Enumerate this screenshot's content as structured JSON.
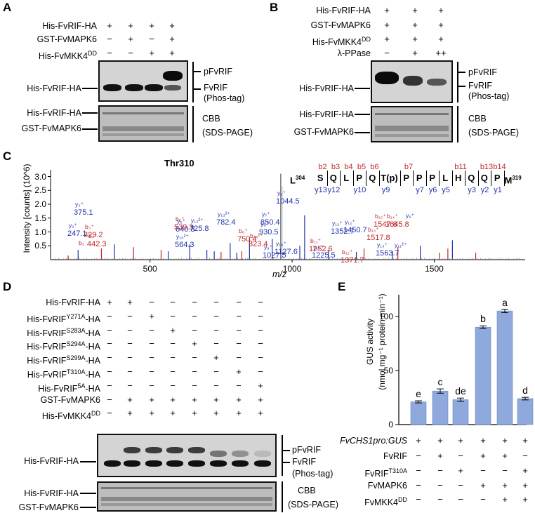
{
  "panels": [
    "A",
    "B",
    "C",
    "D",
    "E"
  ],
  "panelA": {
    "rows": [
      {
        "label": "His-FvRIF-HA",
        "signs": [
          "+",
          "+",
          "+",
          "+"
        ]
      },
      {
        "label": "GST-FvMAPK6",
        "signs": [
          "−",
          "+",
          "−",
          "+"
        ]
      },
      {
        "label": "His-FvMKK4",
        "sup": "DD",
        "signs": [
          "−",
          "−",
          "+",
          "+"
        ]
      }
    ],
    "blot_left": "His-FvRIF-HA",
    "blot_right": [
      "pFvRIF",
      "FvRIF",
      "(Phos-tag)"
    ],
    "cbb_left": [
      "His-FvRIF-HA",
      "GST-FvMAPK6"
    ],
    "cbb_right": [
      "CBB",
      "(SDS-PAGE)"
    ]
  },
  "panelB": {
    "rows": [
      {
        "label": "His-FvRIF-HA",
        "signs": [
          "+",
          "+",
          "+"
        ]
      },
      {
        "label": "GST-FvMAPK6",
        "signs": [
          "+",
          "+",
          "+"
        ]
      },
      {
        "label": "His-FvMKK4",
        "sup": "DD",
        "signs": [
          "+",
          "+",
          "+"
        ]
      },
      {
        "label": "λ-PPase",
        "signs": [
          "−",
          "+",
          "++"
        ]
      }
    ],
    "blot_left": "His-FvRIF-HA",
    "blot_right": [
      "pFvRIF",
      "FvRIF",
      "(Phos-tag)"
    ],
    "cbb_left": [
      "His-FvRIF-HA",
      "GST-FvMAPK6"
    ],
    "cbb_right": [
      "CBB",
      "(SDS-PAGE)"
    ]
  },
  "panelC": {
    "title": "Thr310",
    "ylabel": "Intensity [counts] (10^6)",
    "xlabel": "m/z",
    "yticks": [
      "0.5",
      "1.0",
      "1.5",
      "2.0",
      "2.5",
      "3.0"
    ],
    "xticks": [
      "500",
      "1000",
      "1500"
    ],
    "seq_start": "L",
    "seq_start_sup": "304",
    "seq_end": "M",
    "seq_end_sup": "319",
    "residues": [
      "S",
      "Q",
      "L",
      "P",
      "Q",
      "T(p)",
      "P",
      "P",
      "P",
      "L",
      "H",
      "Q",
      "Q",
      "P"
    ],
    "b_ions": [
      "b2",
      "b3",
      "b4",
      "b5",
      "b6",
      "b7",
      "b11",
      "b13",
      "b14"
    ],
    "y_ions": [
      "y13",
      "y12",
      "y10",
      "y9",
      "y7",
      "y6",
      "y5",
      "y3",
      "y2",
      "y1"
    ],
    "peak_labels": [
      {
        "ion": "b",
        "txt": "b₂",
        "val": ""
      },
      {
        "ion": "y",
        "txt": "y₂⁺",
        "val": "247.1"
      },
      {
        "ion": "b",
        "txt": "b₃⁺",
        "val": "329.2"
      },
      {
        "ion": "y",
        "txt": "y₃⁺",
        "val": "375.1"
      },
      {
        "ion": "b",
        "txt": "b₄⁺",
        "val": "442.3"
      },
      {
        "ion": "b",
        "txt": "b₅⁺",
        "val": "539.3"
      },
      {
        "ion": "y",
        "txt": "y₁₀²⁺",
        "val": "564.3"
      },
      {
        "ion": "y",
        "txt": "y₅⁺",
        "val": "640.3"
      },
      {
        "ion": "y",
        "txt": "y₁₂²⁺",
        "val": "725.8"
      },
      {
        "ion": "y",
        "txt": "y₁₃²⁺",
        "val": "782.4"
      },
      {
        "ion": "b",
        "txt": "b₆⁺",
        "val": "750.4"
      },
      {
        "ion": "b",
        "txt": "b₁₄²⁺",
        "val": "823.4"
      },
      {
        "ion": "y",
        "txt": "y₇⁺",
        "val": "850.4"
      },
      {
        "ion": "y",
        "txt": "y₈⁺",
        "val": "930.5"
      },
      {
        "ion": "y",
        "txt": "y₉⁺",
        "val": "1044.5"
      },
      {
        "ion": "y",
        "txt": "y₉⁺",
        "val": "1027.5"
      },
      {
        "ion": "y",
        "txt": "y₁₀⁺",
        "val": "1127.6"
      },
      {
        "ion": "y",
        "txt": "y₁₀⁺",
        "val": "1225.5"
      },
      {
        "ion": "b",
        "txt": "b₁₁⁺",
        "val": "1252.6"
      },
      {
        "ion": "y",
        "txt": "y₁₂⁺",
        "val": "1352.7"
      },
      {
        "ion": "b",
        "txt": "b₁₂⁺",
        "val": "1371.7"
      },
      {
        "ion": "y",
        "txt": "y₁₂⁺",
        "val": "1450.7"
      },
      {
        "ion": "b",
        "txt": "b₁₃⁺",
        "val": "1517.8"
      },
      {
        "ion": "b",
        "txt": "b₁₃⁺",
        "val": "1547.8"
      },
      {
        "ion": "y",
        "txt": "y₁₃⁺",
        "val": "1563.7"
      },
      {
        "ion": "b",
        "txt": "b₁₄⁺",
        "val": "1645.8"
      },
      {
        "ion": "y",
        "txt": "y₁₁²⁺",
        "val": ""
      },
      {
        "ion": "y",
        "txt": "y₆⁺",
        "val": ""
      }
    ]
  },
  "panelD": {
    "rows": [
      {
        "label": "His-FvRIF-HA",
        "sup": "",
        "signs": [
          "+",
          "+",
          "−",
          "−",
          "−",
          "−",
          "−",
          "−"
        ]
      },
      {
        "label": "His-FvRIF",
        "sup": "Y271A",
        "suffix": "-HA",
        "signs": [
          "−",
          "−",
          "+",
          "−",
          "−",
          "−",
          "−",
          "−"
        ]
      },
      {
        "label": "His-FvRIF",
        "sup": "S283A",
        "suffix": "-HA",
        "signs": [
          "−",
          "−",
          "−",
          "+",
          "−",
          "−",
          "−",
          "−"
        ]
      },
      {
        "label": "His-FvRIF",
        "sup": "S294A",
        "suffix": "-HA",
        "signs": [
          "−",
          "−",
          "−",
          "−",
          "+",
          "−",
          "−",
          "−"
        ]
      },
      {
        "label": "His-FvRIF",
        "sup": "S299A",
        "suffix": "-HA",
        "signs": [
          "−",
          "−",
          "−",
          "−",
          "−",
          "+",
          "−",
          "−"
        ]
      },
      {
        "label": "His-FvRIF",
        "sup": "T310A",
        "suffix": "-HA",
        "signs": [
          "−",
          "−",
          "−",
          "−",
          "−",
          "−",
          "+",
          "−"
        ]
      },
      {
        "label": "His-FvRIF",
        "sup": "5A",
        "suffix": "-HA",
        "signs": [
          "−",
          "−",
          "−",
          "−",
          "−",
          "−",
          "−",
          "+"
        ]
      },
      {
        "label": "GST-FvMAPK6",
        "sup": "",
        "signs": [
          "−",
          "+",
          "+",
          "+",
          "+",
          "+",
          "+",
          "+"
        ]
      },
      {
        "label": "His-FvMKK4",
        "sup": "DD",
        "signs": [
          "−",
          "+",
          "+",
          "+",
          "+",
          "+",
          "+",
          "+"
        ]
      }
    ],
    "blot_left": "His-FvRIF-HA",
    "blot_right": [
      "pFvRIF",
      "FvRIF",
      "(Phos-tag)"
    ],
    "cbb_left": [
      "His-FvRIF-HA",
      "GST-FvMAPK6"
    ],
    "cbb_right": [
      "CBB",
      "(SDS-PAGE)"
    ]
  },
  "chart_data": {
    "type": "bar",
    "ylabel_line1": "GUS activity",
    "ylabel_line2": "(nmol mg⁻¹ protein min⁻¹)",
    "ylim": [
      0,
      120
    ],
    "yticks": [
      "0",
      "50",
      "100"
    ],
    "values": [
      21,
      31,
      23,
      90,
      105,
      24
    ],
    "errors": [
      1,
      2,
      1.5,
      1.2,
      1.5,
      1.2
    ],
    "letters": [
      "e",
      "c",
      "de",
      "b",
      "a",
      "d"
    ],
    "bar_color": "#8fa9dc",
    "rows": [
      {
        "label": "FvCHS1pro:GUS",
        "italic": true,
        "signs": [
          "+",
          "+",
          "+",
          "+",
          "+",
          "+"
        ]
      },
      {
        "label": "FvRIF",
        "signs": [
          "−",
          "+",
          "−",
          "+",
          "+",
          "−"
        ]
      },
      {
        "label": "FvRIF",
        "sup": "T310A",
        "signs": [
          "−",
          "−",
          "+",
          "−",
          "−",
          "+"
        ]
      },
      {
        "label": "FvMAPK6",
        "signs": [
          "−",
          "−",
          "−",
          "+",
          "+",
          "+"
        ]
      },
      {
        "label": "FvMKK4",
        "sup": "DD",
        "signs": [
          "−",
          "−",
          "−",
          "−",
          "+",
          "+"
        ]
      }
    ]
  }
}
